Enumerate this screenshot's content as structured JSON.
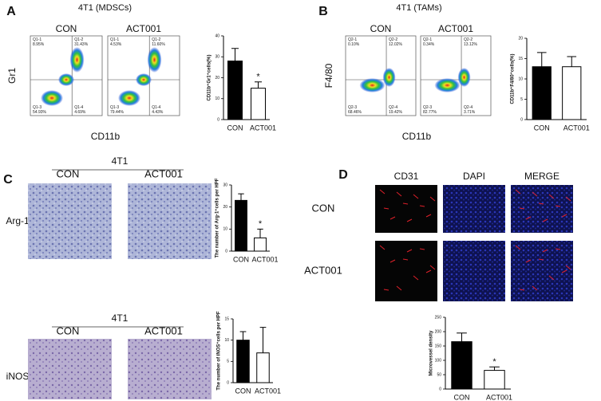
{
  "panels": {
    "A": {
      "label": "A",
      "title": "4T1 (MDSCs)",
      "groups": [
        "CON",
        "ACT001"
      ],
      "yaxis": "Gr1",
      "xaxis": "CD11b",
      "quadrants": [
        [
          "Q1-1\n8.95%",
          "Q1-2\n31.43%",
          "Q1-3\n54.93%",
          "Q1-4\n4.69%"
        ],
        [
          "Q1-1\n4.53%",
          "Q1-2\n11.60%",
          "Q1-3\n79.44%",
          "Q1-4\n4.43%"
        ]
      ]
    },
    "B": {
      "label": "B",
      "title": "4T1 (TAMs)",
      "groups": [
        "CON",
        "ACT001"
      ],
      "yaxis": "F4/80",
      "xaxis": "CD11b",
      "quadrants": [
        [
          "Q2-1\n0.10%",
          "Q2-2\n12.02%",
          "Q2-3\n68.46%",
          "Q2-4\n19.42%"
        ],
        [
          "Q2-1\n0.34%",
          "Q2-2\n13.12%",
          "Q2-3\n82.77%",
          "Q2-4\n3.71%"
        ]
      ]
    },
    "C": {
      "label": "C",
      "rows": [
        {
          "title": "4T1",
          "groups": [
            "CON",
            "ACT001"
          ],
          "stain": "Arg-1"
        },
        {
          "title": "4T1",
          "groups": [
            "CON",
            "ACT001"
          ],
          "stain": "iNOS"
        }
      ]
    },
    "D": {
      "label": "D",
      "columns": [
        "CD31",
        "DAPI",
        "MERGE"
      ],
      "rows": [
        "CON",
        "ACT001"
      ]
    }
  },
  "chart_data": [
    {
      "type": "bar",
      "ylabel": "CD11b⁺Gr1⁺cells(%)",
      "categories": [
        "CON",
        "ACT001"
      ],
      "values": [
        28,
        15
      ],
      "errors": [
        6,
        3
      ],
      "colors": [
        "#000000",
        "#ffffff"
      ],
      "ylim": [
        0,
        40
      ],
      "yticks": [
        0,
        10,
        20,
        30,
        40
      ],
      "annotation": "*"
    },
    {
      "type": "bar",
      "ylabel": "CD11b⁺F4/80⁺cells(%)",
      "categories": [
        "CON",
        "ACT001"
      ],
      "values": [
        13,
        13
      ],
      "errors": [
        3.5,
        2.5
      ],
      "colors": [
        "#000000",
        "#ffffff"
      ],
      "ylim": [
        0,
        20
      ],
      "yticks": [
        0,
        5,
        10,
        15,
        20
      ]
    },
    {
      "type": "bar",
      "ylabel": "The number of Arg-1⁺cells per HPF",
      "categories": [
        "CON",
        "ACT001"
      ],
      "values": [
        23,
        6
      ],
      "errors": [
        3,
        4
      ],
      "colors": [
        "#000000",
        "#ffffff"
      ],
      "ylim": [
        0,
        30
      ],
      "yticks": [
        0,
        10,
        20,
        30
      ],
      "annotation": "*"
    },
    {
      "type": "bar",
      "ylabel": "The number of iNOS⁺cells per HPF",
      "categories": [
        "CON",
        "ACT001"
      ],
      "values": [
        10,
        7
      ],
      "errors": [
        2,
        6
      ],
      "colors": [
        "#000000",
        "#ffffff"
      ],
      "ylim": [
        0,
        15
      ],
      "yticks": [
        0,
        5,
        10,
        15
      ]
    },
    {
      "type": "bar",
      "ylabel": "Microvessel density",
      "categories": [
        "CON",
        "ACT001"
      ],
      "values": [
        165,
        65
      ],
      "errors": [
        30,
        12
      ],
      "colors": [
        "#000000",
        "#ffffff"
      ],
      "ylim": [
        0,
        250
      ],
      "yticks": [
        0,
        50,
        100,
        150,
        200,
        250
      ],
      "annotation": "*"
    }
  ]
}
